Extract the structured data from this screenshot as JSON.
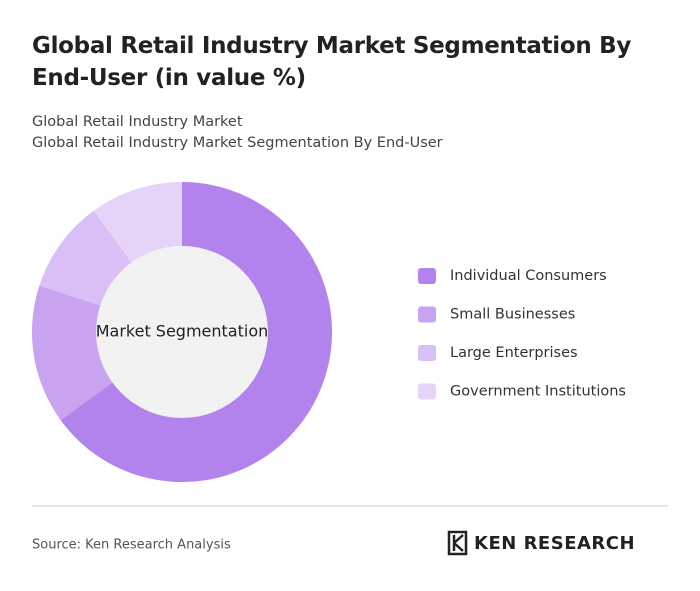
{
  "chart_data": {
    "type": "pie",
    "title": "Global Retail Industry Market Segmentation By End-User (in value %)",
    "subtitle": [
      "Global Retail Industry Market",
      "Global Retail Industry Market Segmentation By End-User"
    ],
    "center_label": "Market Segmentation",
    "categories": [
      "Individual Consumers",
      "Small Businesses",
      "Large Enterprises",
      "Government Institutions"
    ],
    "values": [
      65,
      15,
      10,
      10
    ],
    "colors": [
      "#b283ec",
      "#c7a3f0",
      "#d9bff5",
      "#e6d4f8"
    ]
  },
  "footer": {
    "source": "Source: Ken Research Analysis",
    "logo": "KEN RESEARCH"
  }
}
